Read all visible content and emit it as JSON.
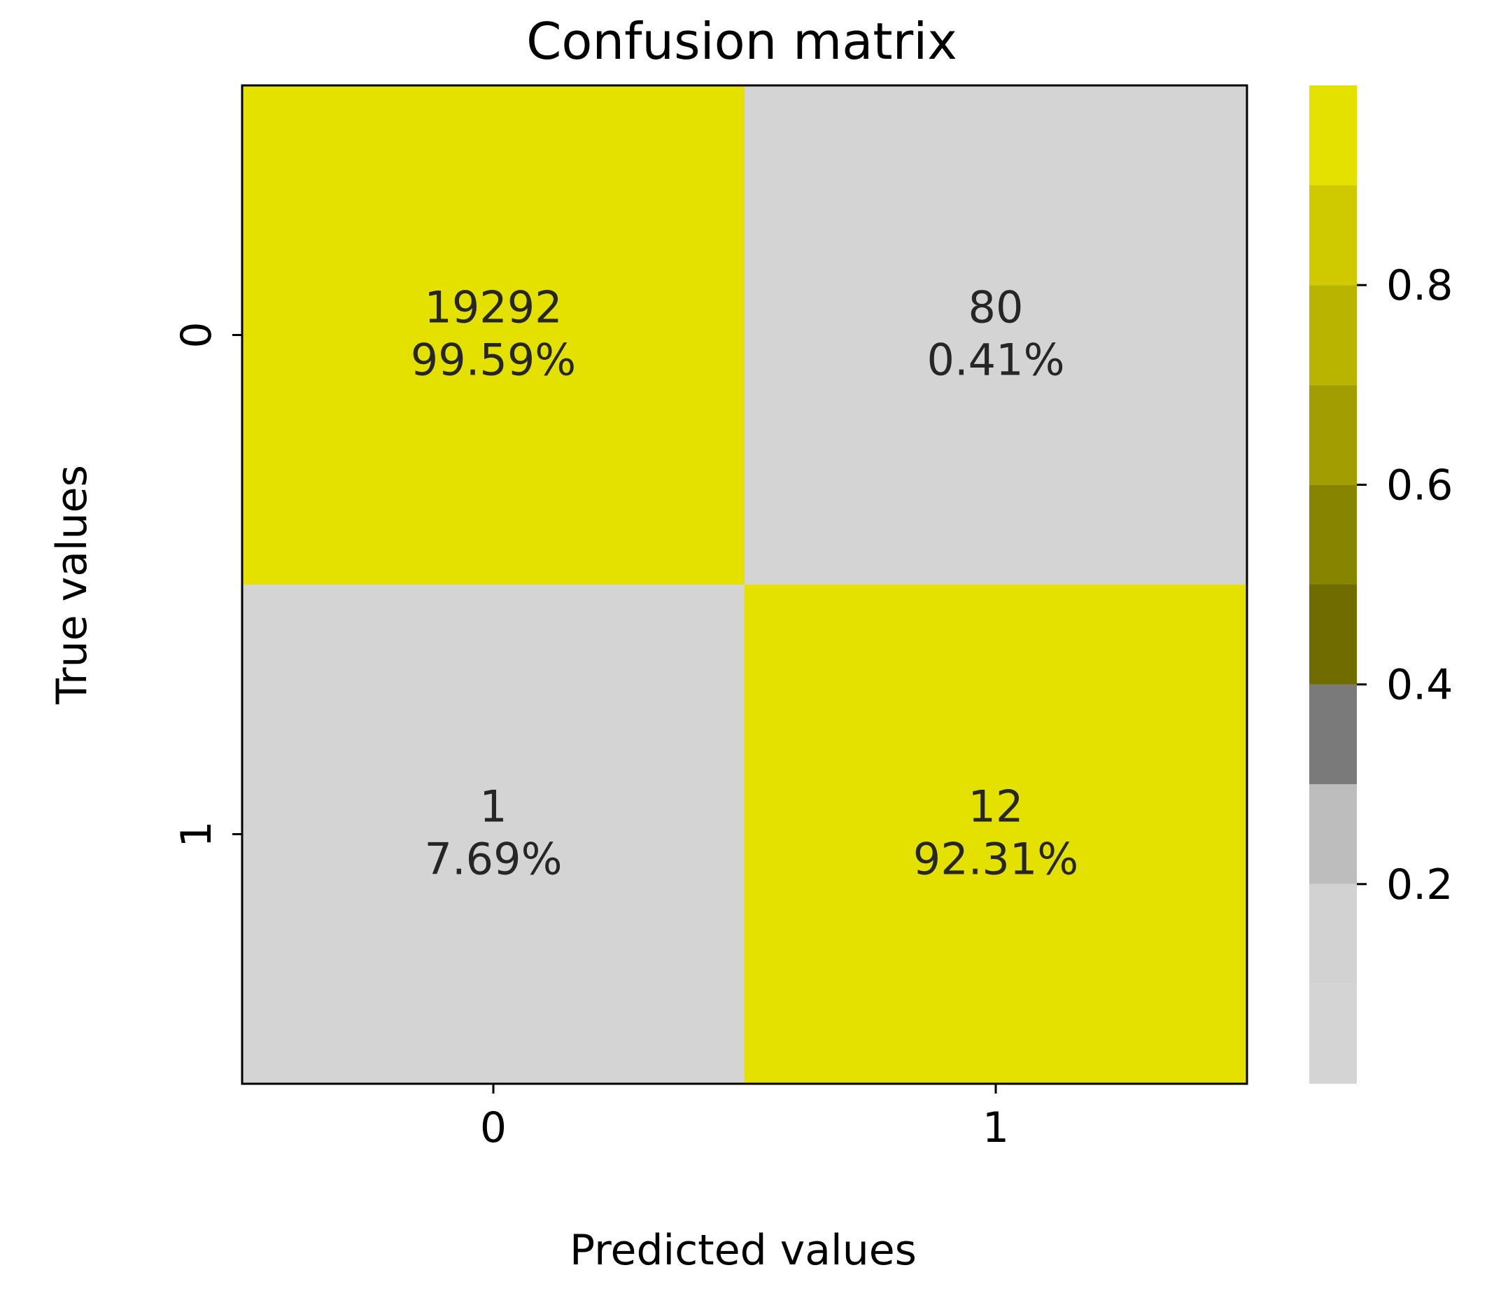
{
  "chart_data": {
    "type": "heatmap",
    "title": "Confusion matrix",
    "xlabel": "Predicted values",
    "ylabel": "True values",
    "x_categories": [
      "0",
      "1"
    ],
    "y_categories": [
      "0",
      "1"
    ],
    "counts": [
      [
        19292,
        80
      ],
      [
        1,
        12
      ]
    ],
    "count_labels": [
      [
        "19292",
        "80"
      ],
      [
        "1",
        "12"
      ]
    ],
    "row_fractions": [
      [
        0.9959,
        0.0041
      ],
      [
        0.0769,
        0.9231
      ]
    ],
    "percent_labels": [
      [
        "99.59%",
        "0.41%"
      ],
      [
        "7.69%",
        "92.31%"
      ]
    ],
    "colorbar": {
      "range": [
        0,
        1
      ],
      "ticks": [
        0.2,
        0.4,
        0.6,
        0.8
      ],
      "tick_labels": [
        "0.2",
        "0.4",
        "0.6",
        "0.8"
      ],
      "bands": [
        {
          "from": 0.0,
          "to": 0.1,
          "color": "#d4d4d4"
        },
        {
          "from": 0.1,
          "to": 0.2,
          "color": "#d2d2d2"
        },
        {
          "from": 0.2,
          "to": 0.3,
          "color": "#bdbdbd"
        },
        {
          "from": 0.3,
          "to": 0.4,
          "color": "#7a7a7a"
        },
        {
          "from": 0.4,
          "to": 0.5,
          "color": "#706c00"
        },
        {
          "from": 0.5,
          "to": 0.6,
          "color": "#878400"
        },
        {
          "from": 0.6,
          "to": 0.7,
          "color": "#a29d00"
        },
        {
          "from": 0.7,
          "to": 0.8,
          "color": "#b8b400"
        },
        {
          "from": 0.8,
          "to": 0.9,
          "color": "#cfca00"
        },
        {
          "from": 0.9,
          "to": 1.0,
          "color": "#e4e100"
        }
      ]
    },
    "grid": false,
    "legend": "colorbar right"
  }
}
